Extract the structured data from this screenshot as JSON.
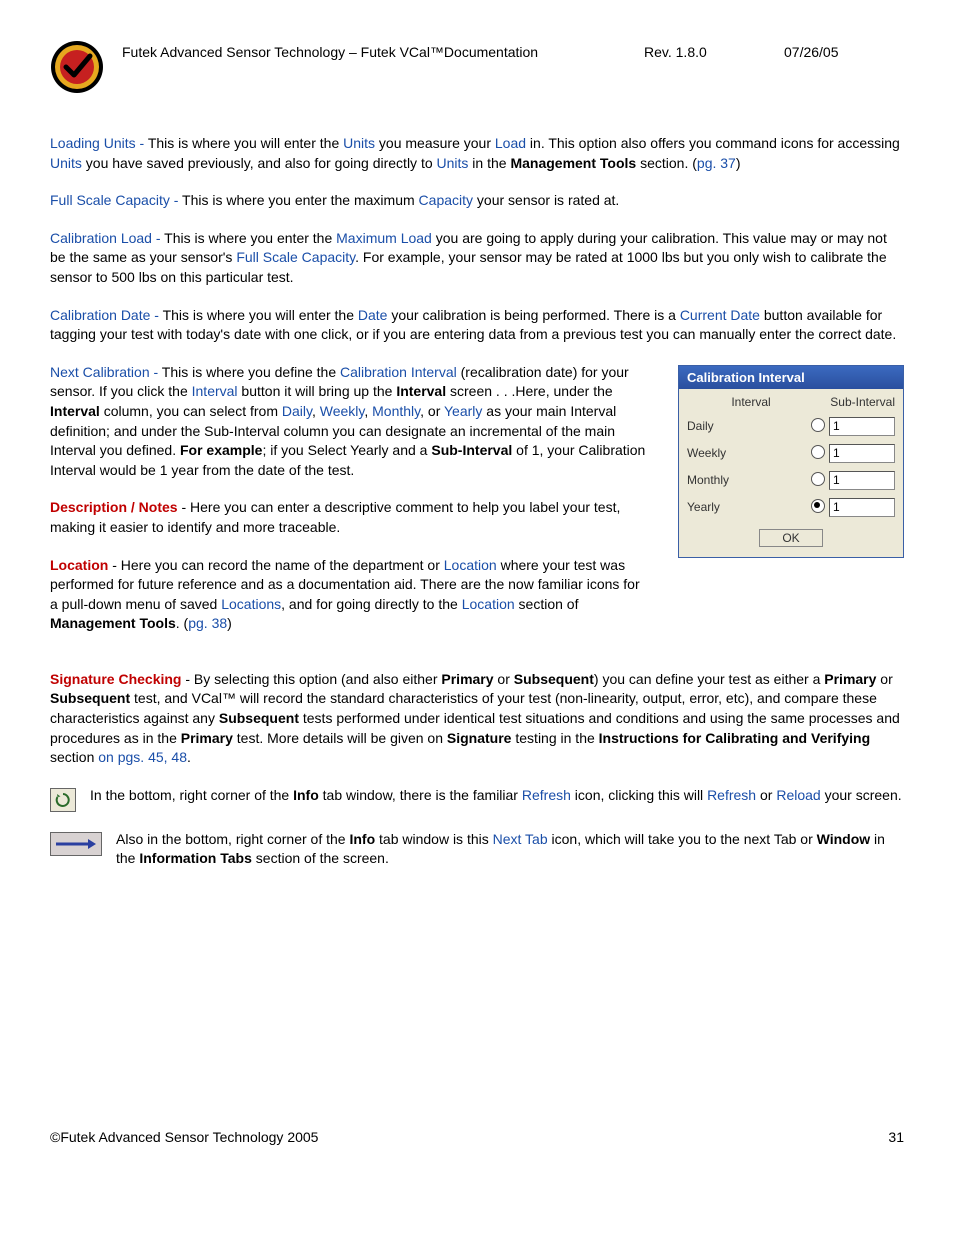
{
  "header": {
    "title": "Futek Advanced Sensor Technology – Futek VCal™Documentation",
    "rev": "Rev. 1.8.0",
    "date": "07/26/05"
  },
  "logo": {
    "outer_color": "#000000",
    "ring_color": "#e6a81f",
    "inner_color": "#c62020",
    "check_color": "#000000"
  },
  "paragraphs": {
    "loading_units": {
      "lead": "Loading Units - ",
      "t1": "This is where you will enter the ",
      "units1": "Units",
      "t2": " you measure your ",
      "load": "Load",
      "t3": " in. This option also offers you command icons for accessing ",
      "units2": "Units",
      "t4": " you have saved previously, and also for going directly to ",
      "units3": "Units",
      "t5": " in the ",
      "mgmt": "Management Tools",
      "t6": " section. (",
      "pg": "pg. 37",
      "t7": ")"
    },
    "full_scale": {
      "lead": "Full Scale Capacity - ",
      "t1": "This is where you enter the maximum ",
      "cap": "Capacity",
      "t2": " your sensor is rated at."
    },
    "calib_load": {
      "lead": "Calibration Load - ",
      "t1": "This is where you enter the ",
      "maxload": "Maximum Load",
      "t2": " you are going to apply during your calibration. This value may or may not be the same as your sensor's ",
      "fsc": "Full Scale Capacity",
      "t3": ". For example, your sensor may be rated at 1000 lbs but you only wish to calibrate the sensor to 500 lbs on this particular test."
    },
    "calib_date": {
      "lead": "Calibration Date - ",
      "t1": "This is where you will enter the ",
      "date": "Date",
      "t2": " your calibration is being performed. There is a ",
      "cur": "Current Date",
      "t3": " button available for tagging your test with today's date with one click, or if you are entering data from a previous test you can manually enter the correct date."
    },
    "next_calib": {
      "lead": "Next Calibration - ",
      "t1": "This is where you define the ",
      "ci": "Calibration Interval",
      "t2": " (recalibration date) for your sensor. If you click the ",
      "intv": "Interval",
      "t3": " button it will bring up the ",
      "intv_b": "Interval",
      "t4": " screen . . .Here, under the ",
      "intv_b2": "Interval",
      "t5": " column, you can select from ",
      "daily": "Daily",
      "c1": ", ",
      "weekly": "Weekly",
      "c2": ", ",
      "monthly": "Monthly",
      "c3": ", or ",
      "yearly": "Yearly",
      "t6": " as your main Interval definition; and under the Sub-Interval column you can designate an incremental of the main Interval you defined. ",
      "forex": "For example",
      "t7": "; if you Select Yearly and a ",
      "subint": "Sub-Interval",
      "t8": " of 1, your Calibration Interval would be 1 year from the date of the test."
    },
    "desc_notes": {
      "lead": "Description / Notes",
      "t1": " - Here you can enter a descriptive comment to help you label your test, making it easier to identify and more traceable."
    },
    "location": {
      "lead": "Location",
      "t1": " - Here you can record the name of the department or ",
      "loc1": "Location",
      "t2": " where your test was performed for future reference and as a documentation aid. There are the now familiar icons for a pull-down menu of saved ",
      "locs": "Locations",
      "t3": ", and for going directly to the ",
      "loc2": "Location",
      "t4": " section of ",
      "mgmt": "Management Tools",
      "t5": ". (",
      "pg": "pg. 38",
      "t6": ")"
    },
    "sig_check": {
      "lead": "Signature Checking",
      "t1": " - By selecting this option (and also either ",
      "pri1": "Primary",
      "t2": " or ",
      "sub1": "Subsequent",
      "t3": ") you can define your test as either a ",
      "pri2": "Primary",
      "t4": " or ",
      "sub2": "Subsequent",
      "t5": " test, and VCal™ will record the standard characteristics of your test (non-linearity, output, error, etc), and compare these characteristics against any ",
      "sub3": "Subsequent",
      "t6": " tests performed under identical test situations and conditions and using the same processes and procedures as in the ",
      "pri3": "Primary",
      "t7": " test. More details will be given on ",
      "sig": "Signature",
      "t8": " testing in the ",
      "instr": "Instructions for Calibrating and Verifying",
      "t9": " section ",
      "pgs": "on pgs. 45, 48",
      "t10": "."
    },
    "refresh": {
      "t1": "In the bottom, right corner of the ",
      "info": "Info",
      "t2": " tab window, there is the familiar ",
      "ref1": "Refresh",
      "t3": " icon, clicking this will ",
      "ref2": "Refresh",
      "t4": " or ",
      "rel": "Reload",
      "t5": " your screen."
    },
    "nexttab": {
      "t1": "Also in the bottom, right corner of the ",
      "info": "Info",
      "t2": " tab window is this ",
      "nt": "Next Tab",
      "t3": " icon, which will take you to the next Tab or ",
      "win": "Window",
      "t4": " in the ",
      "infotabs": "Information Tabs",
      "t5": " section of the screen."
    }
  },
  "dialog": {
    "title": "Calibration Interval",
    "col1": "Interval",
    "col2": "Sub-Interval",
    "rows": [
      {
        "label": "Daily",
        "checked": false,
        "value": "1"
      },
      {
        "label": "Weekly",
        "checked": false,
        "value": "1"
      },
      {
        "label": "Monthly",
        "checked": false,
        "value": "1"
      },
      {
        "label": "Yearly",
        "checked": true,
        "value": "1"
      }
    ],
    "ok": "OK"
  },
  "footer": {
    "copyright": "©Futek Advanced Sensor Technology 2005",
    "page": "31"
  }
}
